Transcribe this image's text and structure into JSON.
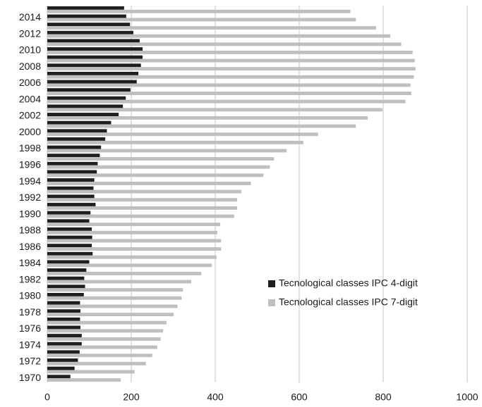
{
  "chart_data": {
    "type": "hbar",
    "categories": [
      "1970",
      null,
      "1972",
      null,
      "1974",
      null,
      "1976",
      null,
      "1978",
      null,
      "1980",
      null,
      "1982",
      null,
      "1984",
      null,
      "1986",
      null,
      "1988",
      null,
      "1990",
      null,
      "1992",
      null,
      "1994",
      null,
      "1996",
      null,
      "1998",
      null,
      "2000",
      null,
      "2002",
      null,
      "2004",
      null,
      "2006",
      null,
      "2008",
      null,
      "2010",
      null,
      "2012",
      null,
      "2014",
      null
    ],
    "series": [
      {
        "name": "Tecnological classes IPC 4-digit",
        "color": "#1f1f1f",
        "values": [
          55,
          65,
          73,
          77,
          82,
          82,
          79,
          78,
          79,
          78,
          87,
          90,
          88,
          93,
          100,
          108,
          106,
          107,
          106,
          100,
          103,
          115,
          112,
          110,
          112,
          118,
          120,
          125,
          128,
          138,
          142,
          152,
          170,
          180,
          187,
          198,
          213,
          217,
          223,
          227,
          227,
          220,
          205,
          197,
          188,
          183
        ]
      },
      {
        "name": "Tecnological classes IPC 7-digit",
        "color": "#bfbfbf",
        "values": [
          175,
          208,
          235,
          250,
          262,
          270,
          276,
          284,
          301,
          310,
          320,
          323,
          343,
          367,
          392,
          403,
          414,
          414,
          405,
          412,
          445,
          452,
          452,
          462,
          485,
          515,
          530,
          540,
          570,
          610,
          645,
          735,
          763,
          798,
          853,
          867,
          865,
          873,
          877,
          875,
          870,
          843,
          817,
          783,
          735,
          722
        ]
      }
    ],
    "xlim": [
      0,
      1000
    ],
    "xticks": [
      0,
      200,
      400,
      600,
      800,
      1000
    ],
    "grid": true,
    "legend": "right"
  }
}
